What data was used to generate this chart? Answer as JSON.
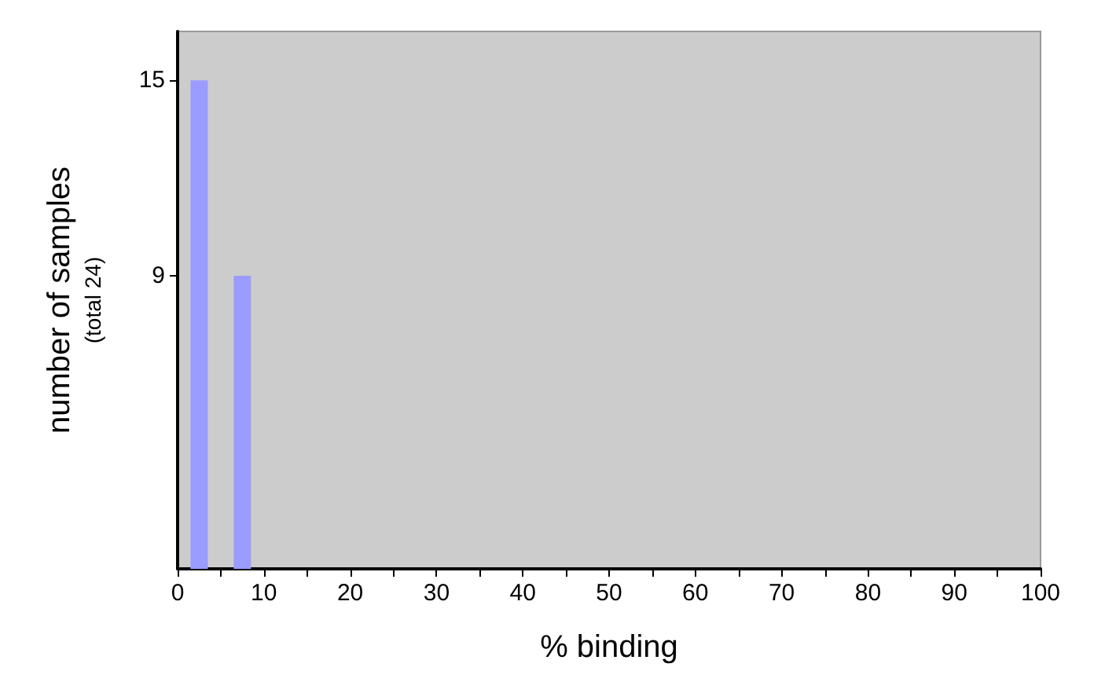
{
  "chart_data": {
    "type": "histogram",
    "xlabel": "% binding",
    "ylabel": "number of samples\n(total 24)",
    "bins": [
      0,
      5,
      10
    ],
    "values": [
      15,
      9
    ],
    "color": "#9a9cff",
    "xlim": [
      0,
      100
    ],
    "xticks": [
      0,
      {
        "value": 5,
        "label": null
      },
      10,
      {
        "value": 15,
        "label": null
      },
      20,
      {
        "value": 25,
        "label": null
      },
      30,
      {
        "value": 35,
        "label": null
      },
      40,
      {
        "value": 45,
        "label": null
      },
      50,
      {
        "value": 55,
        "label": null
      },
      60,
      {
        "value": 65,
        "label": null
      },
      70,
      {
        "value": 75,
        "label": null
      },
      80,
      {
        "value": 85,
        "label": null
      },
      90,
      {
        "value": 95,
        "label": null
      },
      100
    ],
    "ylim": [
      0,
      16.5
    ],
    "yticks": [
      9,
      15
    ],
    "grid": false
  }
}
